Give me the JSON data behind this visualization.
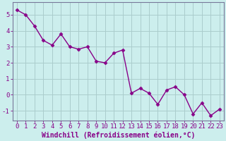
{
  "x": [
    0,
    1,
    2,
    3,
    4,
    5,
    6,
    7,
    8,
    9,
    10,
    11,
    12,
    13,
    14,
    15,
    16,
    17,
    18,
    19,
    20,
    21,
    22,
    23
  ],
  "y": [
    5.3,
    5.0,
    4.3,
    3.4,
    3.1,
    3.8,
    3.0,
    2.85,
    3.0,
    2.1,
    2.0,
    2.6,
    2.8,
    0.1,
    0.4,
    0.1,
    -0.6,
    0.3,
    0.5,
    0.0,
    -1.2,
    -0.5,
    -1.3,
    -0.9
  ],
  "line_color": "#880088",
  "marker": "D",
  "marker_size": 2.5,
  "bg_color": "#cceeed",
  "grid_color": "#aacccc",
  "xlabel": "Windchill (Refroidissement éolien,°C)",
  "ylabel": "",
  "ylim": [
    -1.6,
    5.8
  ],
  "xlim": [
    -0.5,
    23.5
  ],
  "yticks": [
    -1,
    0,
    1,
    2,
    3,
    4,
    5
  ],
  "xticks": [
    0,
    1,
    2,
    3,
    4,
    5,
    6,
    7,
    8,
    9,
    10,
    11,
    12,
    13,
    14,
    15,
    16,
    17,
    18,
    19,
    20,
    21,
    22,
    23
  ],
  "xlabel_fontsize": 7.0,
  "tick_fontsize": 6.5,
  "line_width": 1.0,
  "spine_color": "#777799"
}
